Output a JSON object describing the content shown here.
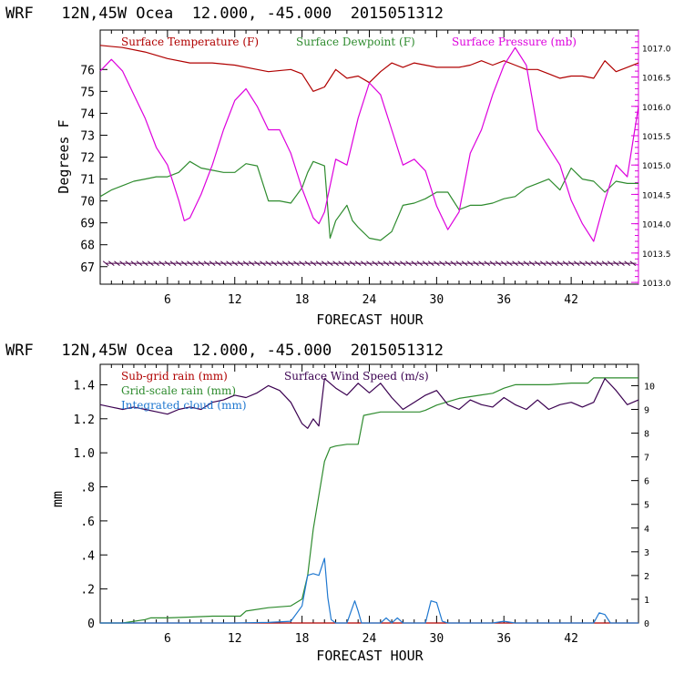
{
  "chart_data": [
    {
      "type": "line",
      "header": "WRF   12N,45W Ocea  12.000, -45.000  2015051312",
      "xlabel": "FORECAST HOUR",
      "ylabel": "Degrees F",
      "xlim": [
        0,
        48
      ],
      "x_ticks": [
        "6",
        "12",
        "18",
        "24",
        "30",
        "36",
        "42"
      ],
      "ylim_left": [
        66.2,
        77.8
      ],
      "y_ticks_left": [
        "67",
        "68",
        "69",
        "70",
        "71",
        "72",
        "73",
        "74",
        "75",
        "76"
      ],
      "ylim_right": [
        1012.97,
        1017.3
      ],
      "y_ticks_right": [
        "1013.0",
        "1013.5",
        "1014.0",
        "1014.5",
        "1015.0",
        "1015.5",
        "1016.0",
        "1016.5",
        "1017.0"
      ],
      "grid": false,
      "legend_position": "top",
      "series": [
        {
          "name": "Surface Temperature (F)",
          "axis": "left",
          "color": "#b00000",
          "x": [
            0,
            2,
            4,
            6,
            8,
            10,
            12,
            14,
            15,
            17,
            18,
            19,
            19.5,
            20,
            21,
            22,
            23,
            24,
            25,
            26,
            27,
            28,
            29,
            30,
            31,
            32,
            33,
            34,
            35,
            36,
            37,
            38,
            39,
            40,
            41,
            42,
            43,
            44,
            45,
            46,
            47,
            48
          ],
          "values": [
            77.1,
            77.0,
            76.8,
            76.5,
            76.3,
            76.3,
            76.2,
            76.0,
            75.9,
            76.0,
            75.8,
            75.0,
            75.1,
            75.2,
            76.0,
            75.6,
            75.7,
            75.4,
            75.9,
            76.3,
            76.1,
            76.3,
            76.2,
            76.1,
            76.1,
            76.1,
            76.2,
            76.4,
            76.2,
            76.4,
            76.2,
            76.0,
            76.0,
            75.8,
            75.6,
            75.7,
            75.7,
            75.6,
            76.4,
            75.9,
            76.1,
            76.3
          ]
        },
        {
          "name": "Surface Dewpoint (F)",
          "axis": "left",
          "color": "#2e8b2e",
          "x": [
            0,
            1,
            2,
            3,
            4,
            5,
            6,
            7,
            8,
            9,
            10,
            11,
            12,
            13,
            14,
            15,
            16,
            17,
            18,
            18.5,
            19,
            20,
            20.5,
            21,
            22,
            22.5,
            23,
            24,
            25,
            26,
            27,
            28,
            29,
            30,
            31,
            32,
            33,
            34,
            35,
            36,
            37,
            38,
            39,
            40,
            41,
            42,
            43,
            44,
            45,
            46,
            47,
            48
          ],
          "values": [
            70.2,
            70.5,
            70.7,
            70.9,
            71.0,
            71.1,
            71.1,
            71.3,
            71.8,
            71.5,
            71.4,
            71.3,
            71.3,
            71.7,
            71.6,
            70.0,
            70.0,
            69.9,
            70.6,
            71.3,
            71.8,
            71.6,
            68.3,
            69.1,
            69.8,
            69.1,
            68.8,
            68.3,
            68.2,
            68.6,
            69.8,
            69.9,
            70.1,
            70.4,
            70.4,
            69.6,
            69.8,
            69.8,
            69.9,
            70.1,
            70.2,
            70.6,
            70.8,
            71.0,
            70.5,
            71.5,
            71.0,
            70.9,
            70.4,
            70.9,
            70.8,
            70.8
          ]
        },
        {
          "name": "Surface Pressure (mb)",
          "axis": "right",
          "color": "#dd00dd",
          "x": [
            0,
            1,
            2,
            3,
            4,
            5,
            6,
            7,
            7.5,
            8,
            9,
            10,
            11,
            12,
            13,
            14,
            15,
            16,
            17,
            18,
            19,
            19.5,
            20,
            21,
            22,
            23,
            24,
            25,
            26,
            27,
            28,
            29,
            30,
            31,
            32,
            33,
            34,
            35,
            36,
            37,
            38,
            39,
            40,
            41,
            42,
            43,
            44,
            45,
            46,
            47,
            48
          ],
          "values": [
            1016.6,
            1016.8,
            1016.6,
            1016.2,
            1015.8,
            1015.3,
            1015.0,
            1014.4,
            1014.05,
            1014.1,
            1014.5,
            1015.0,
            1015.6,
            1016.1,
            1016.3,
            1016.0,
            1015.6,
            1015.6,
            1015.2,
            1014.6,
            1014.1,
            1014.0,
            1014.2,
            1015.1,
            1015.0,
            1015.8,
            1016.4,
            1016.2,
            1015.6,
            1015.0,
            1015.1,
            1014.9,
            1014.3,
            1013.9,
            1014.2,
            1015.2,
            1015.6,
            1016.2,
            1016.7,
            1017.0,
            1016.7,
            1015.6,
            1015.3,
            1015.0,
            1014.4,
            1014.0,
            1013.7,
            1014.4,
            1015.0,
            1014.8,
            1016.0
          ]
        }
      ]
    },
    {
      "type": "line",
      "header": "WRF   12N,45W Ocea  12.000, -45.000  2015051312",
      "xlabel": "FORECAST HOUR",
      "ylabel": "mm",
      "xlim": [
        0,
        48
      ],
      "x_ticks": [
        "6",
        "12",
        "18",
        "24",
        "30",
        "36",
        "42"
      ],
      "ylim_left": [
        0,
        1.52
      ],
      "y_ticks_left": [
        "0",
        ".2",
        ".4",
        ".6",
        ".8",
        "1.0",
        "1.2",
        "1.4"
      ],
      "ylim_right": [
        0,
        10.9
      ],
      "y_ticks_right": [
        "0",
        "1",
        "2",
        "3",
        "4",
        "5",
        "6",
        "7",
        "8",
        "9",
        "10"
      ],
      "grid": false,
      "legend_position": "top-left",
      "series": [
        {
          "name": "Sub-grid rain (mm)",
          "axis": "left",
          "color": "#b00000",
          "x": [
            0,
            48
          ],
          "values": [
            0,
            0
          ]
        },
        {
          "name": "Grid-scale rain (mm)",
          "axis": "left",
          "color": "#2e8b2e",
          "x": [
            0,
            2,
            4,
            4.5,
            6,
            8,
            10,
            12.5,
            13,
            15,
            17,
            18,
            18.5,
            19,
            20,
            20.5,
            21,
            22,
            23,
            23.5,
            25,
            27,
            28.5,
            29,
            30,
            31,
            32,
            33,
            34,
            35,
            36,
            37,
            38,
            40,
            42,
            43.5,
            44,
            46,
            48
          ],
          "values": [
            0,
            0,
            0.02,
            0.03,
            0.03,
            0.035,
            0.04,
            0.04,
            0.07,
            0.09,
            0.1,
            0.14,
            0.28,
            0.55,
            0.95,
            1.03,
            1.04,
            1.05,
            1.05,
            1.22,
            1.24,
            1.24,
            1.24,
            1.25,
            1.28,
            1.3,
            1.32,
            1.33,
            1.34,
            1.35,
            1.38,
            1.4,
            1.4,
            1.4,
            1.41,
            1.41,
            1.44,
            1.44,
            1.44
          ]
        },
        {
          "name": "Integrated cloud (mm)",
          "axis": "left",
          "color": "#1f78d0",
          "x": [
            0,
            12,
            15,
            17,
            18,
            18.5,
            19,
            19.5,
            20,
            20.3,
            20.6,
            21,
            22,
            22.7,
            23,
            23.3,
            24,
            25,
            25.5,
            26,
            26.5,
            27,
            29,
            29.5,
            30,
            30.5,
            31,
            35,
            36,
            37,
            44,
            44.5,
            45,
            45.5,
            48
          ],
          "values": [
            0,
            0,
            0.003,
            0.01,
            0.1,
            0.28,
            0.29,
            0.28,
            0.38,
            0.15,
            0.02,
            0.0,
            0.0,
            0.13,
            0.07,
            0.0,
            0.0,
            0.0,
            0.03,
            0.0,
            0.03,
            0.0,
            0.0,
            0.13,
            0.12,
            0.01,
            0.0,
            0.0,
            0.01,
            0.0,
            0.0,
            0.06,
            0.05,
            0.0,
            0.0
          ]
        },
        {
          "name": "Surface Wind Speed (m/s)",
          "axis": "right",
          "color": "#3a0050",
          "x": [
            0,
            1,
            2,
            3,
            4,
            5,
            6,
            7,
            8,
            9,
            10,
            11,
            12,
            13,
            14,
            15,
            16,
            17,
            18,
            18.5,
            19,
            19.5,
            20,
            21,
            22,
            23,
            24,
            25,
            26,
            27,
            28,
            29,
            30,
            31,
            32,
            33,
            34,
            35,
            36,
            37,
            38,
            39,
            40,
            41,
            42,
            43,
            44,
            45,
            46,
            47,
            48
          ],
          "values": [
            9.2,
            9.1,
            9.0,
            9.1,
            9.0,
            8.9,
            8.8,
            9.0,
            9.1,
            9.0,
            9.3,
            9.4,
            9.6,
            9.5,
            9.7,
            10.0,
            9.8,
            9.3,
            8.4,
            8.2,
            8.6,
            8.3,
            10.3,
            9.9,
            9.6,
            10.1,
            9.7,
            10.1,
            9.5,
            9.0,
            9.3,
            9.6,
            9.8,
            9.2,
            9.0,
            9.4,
            9.2,
            9.1,
            9.5,
            9.2,
            9.0,
            9.4,
            9.0,
            9.2,
            9.3,
            9.1,
            9.3,
            10.3,
            9.8,
            9.2,
            9.4
          ]
        }
      ]
    }
  ]
}
